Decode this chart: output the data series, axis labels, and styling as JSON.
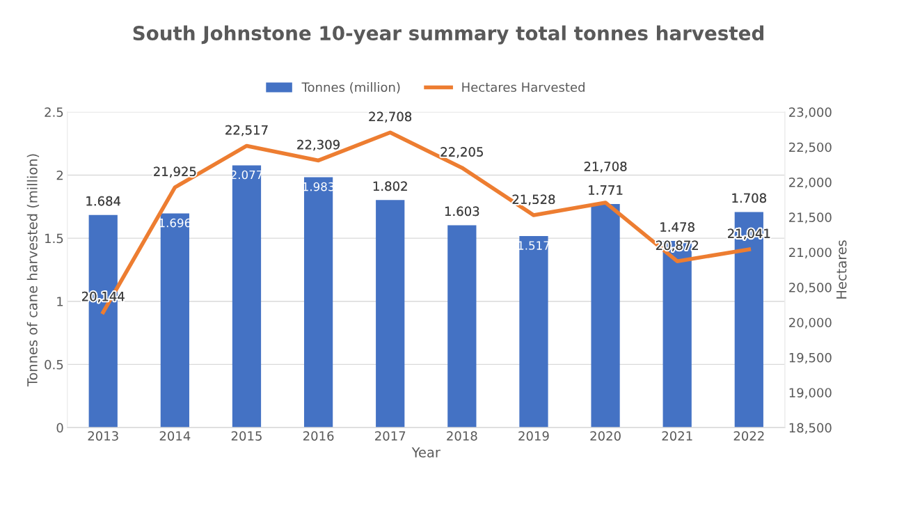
{
  "chart_data": {
    "type": "bar",
    "title": "South Johnstone 10-year summary total tonnes harvested",
    "xlabel": "Year",
    "ylabel": "Tonnes of cane harvested (million)",
    "y2label": "Hectares",
    "categories": [
      "2013",
      "2014",
      "2015",
      "2016",
      "2017",
      "2018",
      "2019",
      "2020",
      "2021",
      "2022"
    ],
    "series": [
      {
        "name": "Tonnes (million)",
        "type": "bar",
        "color": "#4472c4",
        "values": [
          1.684,
          1.696,
          2.077,
          1.983,
          1.802,
          1.603,
          1.517,
          1.771,
          1.478,
          1.708
        ],
        "value_labels": [
          "1.684",
          "1.696",
          "2.077",
          "1.983",
          "1.802",
          "1.603",
          "1.517",
          "1.771",
          "1.478",
          "1.708"
        ]
      },
      {
        "name": "Hectares Harvested",
        "type": "line",
        "axis": "y2",
        "color": "#ed7d31",
        "values": [
          20144,
          21925,
          22517,
          22309,
          22708,
          22205,
          21528,
          21708,
          20872,
          21041
        ],
        "value_labels": [
          "20,144",
          "21,925",
          "22,517",
          "22,309",
          "22,708",
          "22,205",
          "21,528",
          "21,708",
          "20,872",
          "21,041"
        ]
      }
    ],
    "ylim": [
      0,
      2.5
    ],
    "yticks": [
      0,
      0.5,
      1,
      1.5,
      2,
      2.5
    ],
    "y2lim": [
      18500,
      23000
    ],
    "y2ticks": [
      {
        "value": 18500,
        "label": "18,500"
      },
      {
        "value": 19000,
        "label": "19,000"
      },
      {
        "value": 19500,
        "label": "19,500"
      },
      {
        "value": 20000,
        "label": "20,000"
      },
      {
        "value": 20500,
        "label": "20,500"
      },
      {
        "value": 21000,
        "label": "21,000"
      },
      {
        "value": 21500,
        "label": "21,500"
      },
      {
        "value": 22000,
        "label": "22,000"
      },
      {
        "value": 22500,
        "label": "22,500"
      },
      {
        "value": 23000,
        "label": "23,000"
      }
    ],
    "grid": "y",
    "legend": "top",
    "marker": "none",
    "line_style": "solid"
  }
}
